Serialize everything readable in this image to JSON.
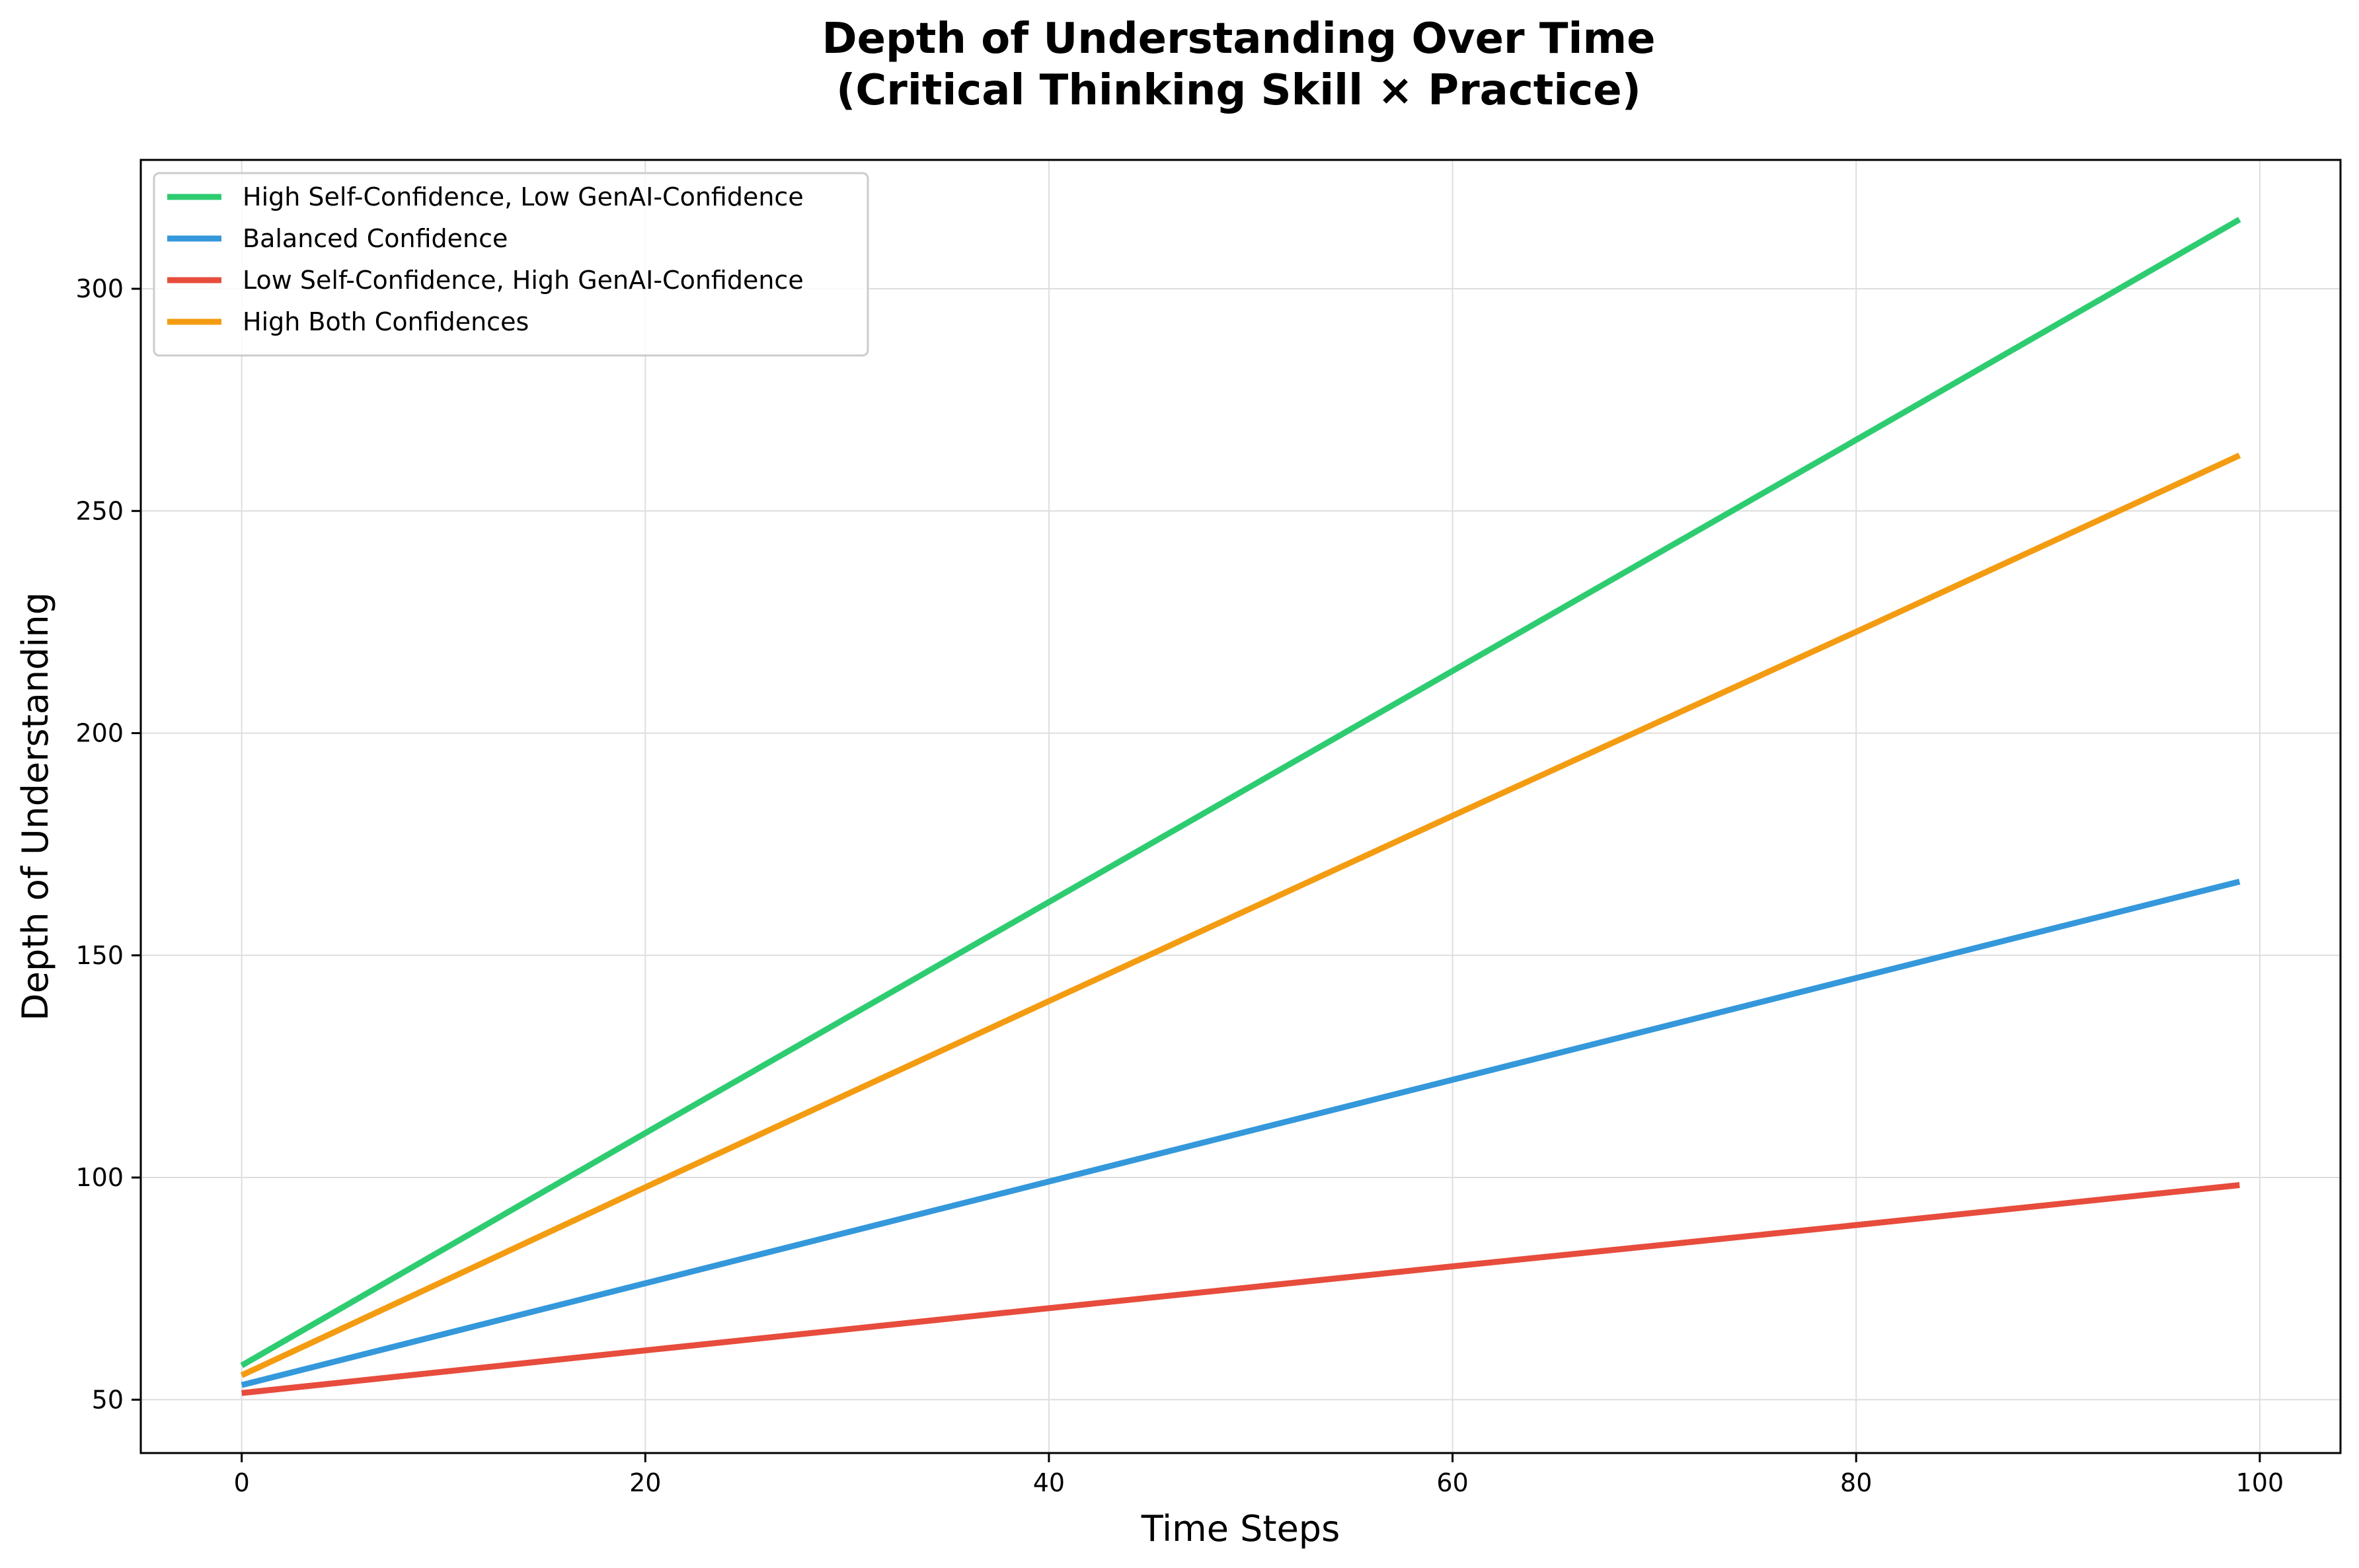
{
  "chart_data": {
    "type": "line",
    "title_lines": [
      "Depth of Understanding Over Time",
      "(Critical Thinking Skill × Practice)"
    ],
    "xlabel": "Time Steps",
    "ylabel": "Depth of Understanding",
    "xlim": [
      -5,
      104
    ],
    "ylim": [
      38,
      329
    ],
    "xticks": [
      0,
      20,
      40,
      60,
      80,
      100
    ],
    "yticks": [
      50,
      100,
      150,
      200,
      250,
      300
    ],
    "grid": true,
    "legend_position": "upper-left",
    "series": [
      {
        "name": "High Self-Confidence, Low GenAI-Confidence",
        "color": "#2ecc71",
        "x": [
          0,
          20,
          40,
          60,
          80,
          99
        ],
        "y": [
          57.7,
          110.0,
          162.0,
          214.0,
          266.0,
          315.6
        ]
      },
      {
        "name": "Balanced Confidence",
        "color": "#3498db",
        "x": [
          0,
          20,
          40,
          60,
          80,
          99
        ],
        "y": [
          53.3,
          76.2,
          99.1,
          122.0,
          144.9,
          166.6
        ]
      },
      {
        "name": "Low Self-Confidence, High GenAI-Confidence",
        "color": "#e74c3c",
        "x": [
          0,
          20,
          40,
          60,
          80,
          99
        ],
        "y": [
          51.5,
          61.1,
          70.6,
          80.0,
          89.3,
          98.3
        ]
      },
      {
        "name": "High Both Confidences",
        "color": "#f39c12",
        "x": [
          0,
          20,
          40,
          60,
          80,
          99
        ],
        "y": [
          55.5,
          97.8,
          139.7,
          181.4,
          222.8,
          262.5
        ]
      }
    ]
  }
}
